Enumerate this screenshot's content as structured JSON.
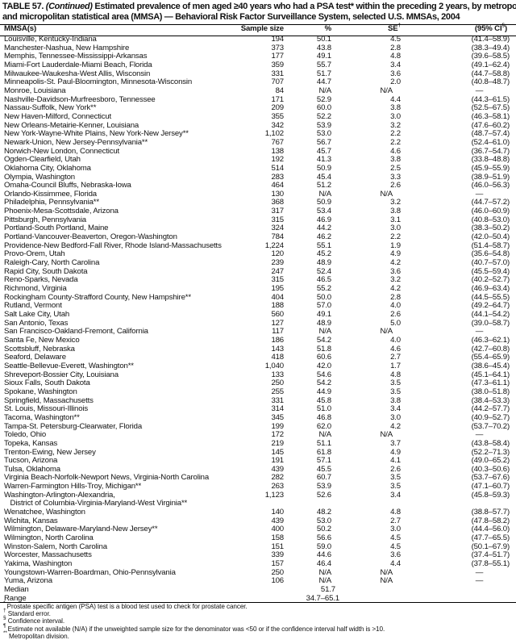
{
  "title": {
    "label": "TABLE 57.",
    "continued": "(Continued)",
    "line1_rest": "Estimated prevalence of men aged ≥40 years who had a PSA test* within the preceding 2 years, by metropolitan",
    "line2": "and micropolitan statistical area (MMSA) — Behavioral Risk Factor Surveillance System, selected U.S. MMSAs, 2004"
  },
  "columns": {
    "mmsa": "MMSA(s)",
    "sample": "Sample size",
    "pct": "%",
    "se": "SE",
    "se_mark": "†",
    "ci": "(95% CI",
    "ci_mark": "§",
    "ci_close": ")"
  },
  "rows": [
    [
      "Louisville, Kentucky-Indiana",
      "194",
      "50.1",
      "4.5",
      "(41.4–58.9)"
    ],
    [
      "Manchester-Nashua, New Hampshire",
      "373",
      "43.8",
      "2.8",
      "(38.3–49.4)"
    ],
    [
      "Memphis, Tennessee-Mississippi-Arkansas",
      "177",
      "49.1",
      "4.8",
      "(39.6–58.5)"
    ],
    [
      "Miami-Fort Lauderdale-Miami Beach, Florida",
      "359",
      "55.7",
      "3.4",
      "(49.1–62.4)"
    ],
    [
      "Milwaukee-Waukesha-West Allis, Wisconsin",
      "331",
      "51.7",
      "3.6",
      "(44.7–58.8)"
    ],
    [
      "Minneapolis-St. Paul-Bloomington, Minnesota-Wisconsin",
      "707",
      "44.7",
      "2.0",
      "(40.8–48.7)"
    ],
    [
      "Monroe, Louisiana",
      "84",
      "N/A",
      "N/A",
      "—"
    ],
    [
      "Nashville-Davidson-Murfreesboro, Tennessee",
      "171",
      "52.9",
      "4.4",
      "(44.3–61.5)"
    ],
    [
      "Nassau-Suffolk, New York**",
      "209",
      "60.0",
      "3.8",
      "(52.5–67.5)"
    ],
    [
      "New Haven-Milford, Connecticut",
      "355",
      "52.2",
      "3.0",
      "(46.3–58.1)"
    ],
    [
      "New Orleans-Metairie-Kenner, Louisiana",
      "342",
      "53.9",
      "3.2",
      "(47.6–60.2)"
    ],
    [
      "New York-Wayne-White Plains, New York-New Jersey**",
      "1,102",
      "53.0",
      "2.2",
      "(48.7–57.4)"
    ],
    [
      "Newark-Union, New Jersey-Pennsylvania**",
      "767",
      "56.7",
      "2.2",
      "(52.4–61.0)"
    ],
    [
      "Norwich-New London, Connecticut",
      "138",
      "45.7",
      "4.6",
      "(36.7–54.7)"
    ],
    [
      "Ogden-Clearfield, Utah",
      "192",
      "41.3",
      "3.8",
      "(33.8–48.8)"
    ],
    [
      "Oklahoma City, Oklahoma",
      "514",
      "50.9",
      "2.5",
      "(45.9–55.9)"
    ],
    [
      "Olympia, Washington",
      "283",
      "45.4",
      "3.3",
      "(38.9–51.9)"
    ],
    [
      "Omaha-Council Bluffs, Nebraska-Iowa",
      "464",
      "51.2",
      "2.6",
      "(46.0–56.3)"
    ],
    [
      "Orlando-Kissimmee, Florida",
      "130",
      "N/A",
      "N/A",
      "—"
    ],
    [
      "Philadelphia, Pennsylvania**",
      "368",
      "50.9",
      "3.2",
      "(44.7–57.2)"
    ],
    [
      "Phoenix-Mesa-Scottsdale, Arizona",
      "317",
      "53.4",
      "3.8",
      "(46.0–60.9)"
    ],
    [
      "Pittsburgh, Pennsylvania",
      "315",
      "46.9",
      "3.1",
      "(40.8–53.0)"
    ],
    [
      "Portland-South Portland, Maine",
      "324",
      "44.2",
      "3.0",
      "(38.3–50.2)"
    ],
    [
      "Portland-Vancouver-Beaverton, Oregon-Washington",
      "784",
      "46.2",
      "2.2",
      "(42.0–50.4)"
    ],
    [
      "Providence-New Bedford-Fall River, Rhode Island-Massachusetts",
      "1,224",
      "55.1",
      "1.9",
      "(51.4–58.7)"
    ],
    [
      "Provo-Orem, Utah",
      "120",
      "45.2",
      "4.9",
      "(35.6–54.8)"
    ],
    [
      "Raleigh-Cary, North Carolina",
      "239",
      "48.9",
      "4.2",
      "(40.7–57.0)"
    ],
    [
      "Rapid City, South Dakota",
      "247",
      "52.4",
      "3.6",
      "(45.5–59.4)"
    ],
    [
      "Reno-Sparks, Nevada",
      "315",
      "46.5",
      "3.2",
      "(40.2–52.7)"
    ],
    [
      "Richmond, Virginia",
      "195",
      "55.2",
      "4.2",
      "(46.9–63.4)"
    ],
    [
      "Rockingham County-Strafford County, New Hampshire**",
      "404",
      "50.0",
      "2.8",
      "(44.5–55.5)"
    ],
    [
      "Rutland, Vermont",
      "188",
      "57.0",
      "4.0",
      "(49.2–64.7)"
    ],
    [
      "Salt Lake City, Utah",
      "560",
      "49.1",
      "2.6",
      "(44.1–54.2)"
    ],
    [
      "San Antonio, Texas",
      "127",
      "48.9",
      "5.0",
      "(39.0–58.7)"
    ],
    [
      "San Francisco-Oakland-Fremont, California",
      "117",
      "N/A",
      "N/A",
      "—"
    ],
    [
      "Santa Fe, New Mexico",
      "186",
      "54.2",
      "4.0",
      "(46.3–62.1)"
    ],
    [
      "Scottsbluff, Nebraska",
      "143",
      "51.8",
      "4.6",
      "(42.7–60.8)"
    ],
    [
      "Seaford, Delaware",
      "418",
      "60.6",
      "2.7",
      "(55.4–65.9)"
    ],
    [
      "Seattle-Bellevue-Everett, Washington**",
      "1,040",
      "42.0",
      "1.7",
      "(38.6–45.4)"
    ],
    [
      "Shreveport-Bossier City, Louisiana",
      "133",
      "54.6",
      "4.8",
      "(45.1–64.1)"
    ],
    [
      "Sioux Falls, South Dakota",
      "250",
      "54.2",
      "3.5",
      "(47.3–61.1)"
    ],
    [
      "Spokane, Washington",
      "255",
      "44.9",
      "3.5",
      "(38.0–51.8)"
    ],
    [
      "Springfield, Massachusetts",
      "331",
      "45.8",
      "3.8",
      "(38.4–53.3)"
    ],
    [
      "St. Louis, Missouri-Illinois",
      "314",
      "51.0",
      "3.4",
      "(44.2–57.7)"
    ],
    [
      "Tacoma, Washington**",
      "345",
      "46.8",
      "3.0",
      "(40.9–52.7)"
    ],
    [
      "Tampa-St. Petersburg-Clearwater, Florida",
      "199",
      "62.0",
      "4.2",
      "(53.7–70.2)"
    ],
    [
      "Toledo, Ohio",
      "172",
      "N/A",
      "N/A",
      "—"
    ],
    [
      "Topeka, Kansas",
      "219",
      "51.1",
      "3.7",
      "(43.8–58.4)"
    ],
    [
      "Trenton-Ewing, New Jersey",
      "145",
      "61.8",
      "4.9",
      "(52.2–71.3)"
    ],
    [
      "Tucson, Arizona",
      "191",
      "57.1",
      "4.1",
      "(49.0–65.2)"
    ],
    [
      "Tulsa, Oklahoma",
      "439",
      "45.5",
      "2.6",
      "(40.3–50.6)"
    ],
    [
      "Virginia Beach-Norfolk-Newport News, Virginia-North Carolina",
      "282",
      "60.7",
      "3.5",
      "(53.7–67.6)"
    ],
    [
      "Warren-Farmington Hills-Troy, Michigan**",
      "263",
      "53.9",
      "3.5",
      "(47.1–60.7)"
    ],
    [
      "Washington-Arlington-Alexandria,\n   District of Columbia-Virginia-Maryland-West Virginia**",
      "1,123",
      "52.6",
      "3.4",
      "(45.8–59.3)"
    ],
    [
      "Wenatchee, Washington",
      "140",
      "48.2",
      "4.8",
      "(38.8–57.7)"
    ],
    [
      "Wichita, Kansas",
      "439",
      "53.0",
      "2.7",
      "(47.8–58.2)"
    ],
    [
      "Wilmington, Delaware-Maryland-New Jersey**",
      "400",
      "50.2",
      "3.0",
      "(44.4–56.0)"
    ],
    [
      "Wilmington, North Carolina",
      "158",
      "56.6",
      "4.5",
      "(47.7–65.5)"
    ],
    [
      "Winston-Salem, North Carolina",
      "151",
      "59.0",
      "4.5",
      "(50.1–67.9)"
    ],
    [
      "Worcester, Massachusetts",
      "339",
      "44.6",
      "3.6",
      "(37.4–51.7)"
    ],
    [
      "Yakima, Washington",
      "157",
      "46.4",
      "4.4",
      "(37.8–55.1)"
    ],
    [
      "Youngstown-Warren-Boardman, Ohio-Pennsylvania",
      "250",
      "N/A",
      "N/A",
      "—"
    ],
    [
      "Yuma, Arizona",
      "106",
      "N/A",
      "N/A",
      "—"
    ]
  ],
  "summary": [
    [
      "Median",
      "51.7"
    ],
    [
      "Range",
      "34.7–65.1"
    ]
  ],
  "footnotes": [
    [
      "*",
      "Prostate specific antigen (PSA) test is a blood test used to check for prostate cancer."
    ],
    [
      "†",
      "Standard error."
    ],
    [
      "§",
      "Confidence interval."
    ],
    [
      "¶",
      "Estimate not available (N/A) if the unweighted sample size for the denominator was <50 or if the confidence interval half width is >10."
    ],
    [
      "**",
      "Metropolitan division."
    ]
  ]
}
